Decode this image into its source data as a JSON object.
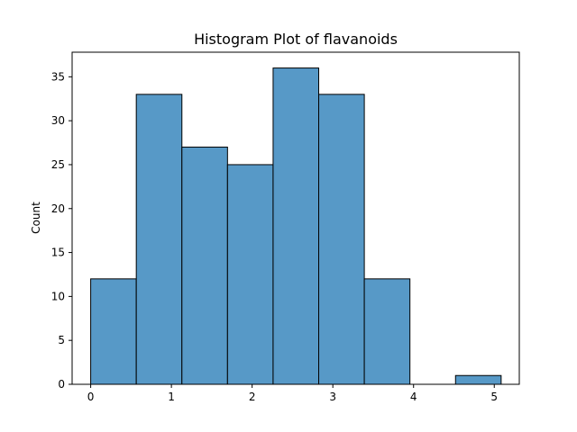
{
  "chart_data": {
    "type": "bar",
    "title": "Histogram Plot of flavanoids",
    "xlabel": "",
    "ylabel": "Count",
    "xlim": [
      -0.23,
      5.31
    ],
    "ylim": [
      0,
      37.8
    ],
    "grid": false,
    "bar_color": "#5799c7",
    "edge_color": "#000000",
    "x_ticks": [
      0,
      1,
      2,
      3,
      4,
      5
    ],
    "y_ticks": [
      0,
      5,
      10,
      15,
      20,
      25,
      30,
      35
    ],
    "bins": [
      {
        "x0": 0.0,
        "x1": 0.565,
        "count": 12
      },
      {
        "x0": 0.565,
        "x1": 1.13,
        "count": 33
      },
      {
        "x0": 1.13,
        "x1": 1.695,
        "count": 27
      },
      {
        "x0": 1.695,
        "x1": 2.26,
        "count": 25
      },
      {
        "x0": 2.26,
        "x1": 2.825,
        "count": 36
      },
      {
        "x0": 2.825,
        "x1": 3.39,
        "count": 33
      },
      {
        "x0": 3.39,
        "x1": 3.955,
        "count": 12
      },
      {
        "x0": 3.955,
        "x1": 4.52,
        "count": 0
      },
      {
        "x0": 4.52,
        "x1": 5.085,
        "count": 1
      }
    ]
  }
}
